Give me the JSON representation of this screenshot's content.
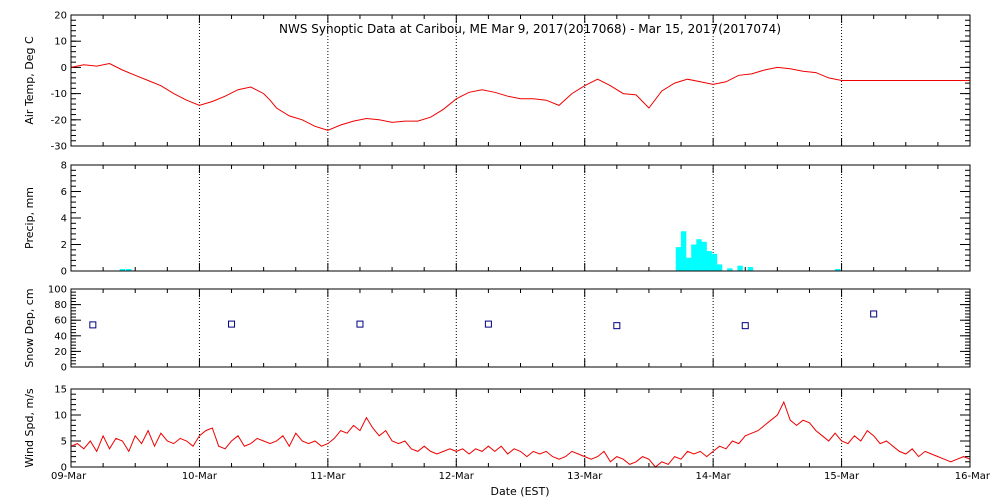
{
  "chart_data": {
    "title": "NWS Synoptic Data at Caribou, ME   Mar  9, 2017(2017068) - Mar 15, 2017(2017074)",
    "xlabel": "Date (EST)",
    "x_ticks": [
      "09-Mar",
      "10-Mar",
      "11-Mar",
      "12-Mar",
      "13-Mar",
      "14-Mar",
      "15-Mar",
      "16-Mar"
    ],
    "x_range_days": [
      0,
      7
    ],
    "grid": "vertical dotted at day boundaries",
    "panels": [
      {
        "id": "air_temp",
        "type": "line",
        "ylabel": "Air Temp, Deg C",
        "ylim": [
          -30,
          20
        ],
        "y_ticks": [
          "20",
          "10",
          "0",
          "-10",
          "-20",
          "-30"
        ],
        "color": "#ee0000",
        "x": [
          0,
          0.1,
          0.2,
          0.3,
          0.4,
          0.5,
          0.6,
          0.7,
          0.8,
          0.9,
          1.0,
          1.1,
          1.2,
          1.3,
          1.4,
          1.5,
          1.55,
          1.6,
          1.7,
          1.8,
          1.9,
          2.0,
          2.1,
          2.2,
          2.3,
          2.4,
          2.5,
          2.6,
          2.7,
          2.8,
          2.9,
          3.0,
          3.1,
          3.2,
          3.3,
          3.4,
          3.5,
          3.6,
          3.7,
          3.8,
          3.9,
          4.0,
          4.1,
          4.2,
          4.3,
          4.4,
          4.5,
          4.6,
          4.7,
          4.8,
          4.9,
          5.0,
          5.1,
          5.2,
          5.3,
          5.4,
          5.5,
          5.6,
          5.7,
          5.8,
          5.9,
          6.0,
          6.1,
          6.2,
          6.3,
          6.4,
          6.5,
          6.6,
          6.7,
          6.8,
          6.9,
          7.0
        ],
        "values": [
          0,
          1,
          0.5,
          1.5,
          -1,
          -3,
          -5,
          -7,
          -10,
          -12.5,
          -14.5,
          -13,
          -11,
          -8.5,
          -7.5,
          -10,
          -12.5,
          -15.5,
          -18.5,
          -20,
          -22.5,
          -24,
          -22,
          -20.5,
          -19.5,
          -20,
          -21,
          -20.5,
          -20.5,
          -19,
          -16,
          -12,
          -9.5,
          -8.5,
          -9.5,
          -11,
          -12,
          -12,
          -12.5,
          -14.5,
          -10,
          -7,
          -4.5,
          -7,
          -10,
          -10.5,
          -15.5,
          -9,
          -6,
          -4.5,
          -5.5,
          -6.5,
          -5.5,
          -3,
          -2.5,
          -1,
          0,
          -0.5,
          -1.5,
          -2,
          -4,
          -5,
          -5,
          -5,
          -5,
          -5,
          -5,
          -5,
          -5,
          -5,
          -5,
          -5
        ]
      },
      {
        "id": "precip",
        "type": "bar",
        "ylabel": "Precip, mm",
        "ylim": [
          0,
          8
        ],
        "y_ticks": [
          "8",
          "6",
          "4",
          "2",
          "0"
        ],
        "color": "#00ffff",
        "bar_width_days": 0.042,
        "x": [
          0.4,
          0.45,
          4.73,
          4.77,
          4.81,
          4.85,
          4.89,
          4.93,
          4.97,
          5.01,
          5.05,
          5.13,
          5.21,
          5.29,
          5.97
        ],
        "values": [
          0.15,
          0.15,
          1.8,
          3.0,
          1.0,
          2.0,
          2.4,
          2.2,
          1.5,
          1.3,
          0.5,
          0.2,
          0.4,
          0.3,
          0.15
        ]
      },
      {
        "id": "snow_depth",
        "type": "scatter",
        "ylabel": "Snow Dep, cm",
        "ylim": [
          0,
          100
        ],
        "y_ticks": [
          "100",
          "80",
          "60",
          "40",
          "20",
          "0"
        ],
        "color": "#000080",
        "x": [
          0.17,
          1.25,
          2.25,
          3.25,
          4.25,
          5.25,
          6.25
        ],
        "values": [
          54,
          55,
          55,
          55,
          53,
          53,
          68
        ]
      },
      {
        "id": "wind_speed",
        "type": "line",
        "ylabel": "Wind Spd, m/s",
        "ylim": [
          0,
          15
        ],
        "y_ticks": [
          "15",
          "10",
          "5",
          "0"
        ],
        "color": "#ee0000",
        "x": [
          0,
          0.05,
          0.1,
          0.15,
          0.2,
          0.25,
          0.3,
          0.35,
          0.4,
          0.45,
          0.5,
          0.55,
          0.6,
          0.65,
          0.7,
          0.75,
          0.8,
          0.85,
          0.9,
          0.95,
          1.0,
          1.05,
          1.1,
          1.15,
          1.2,
          1.25,
          1.3,
          1.35,
          1.4,
          1.45,
          1.5,
          1.55,
          1.6,
          1.65,
          1.7,
          1.75,
          1.8,
          1.85,
          1.9,
          1.95,
          2.0,
          2.05,
          2.1,
          2.15,
          2.2,
          2.25,
          2.3,
          2.35,
          2.4,
          2.45,
          2.5,
          2.55,
          2.6,
          2.65,
          2.7,
          2.75,
          2.8,
          2.85,
          2.9,
          2.95,
          3.0,
          3.05,
          3.1,
          3.15,
          3.2,
          3.25,
          3.3,
          3.35,
          3.4,
          3.45,
          3.5,
          3.55,
          3.6,
          3.65,
          3.7,
          3.75,
          3.8,
          3.85,
          3.9,
          3.95,
          4.0,
          4.05,
          4.1,
          4.15,
          4.2,
          4.25,
          4.3,
          4.35,
          4.4,
          4.45,
          4.5,
          4.55,
          4.6,
          4.65,
          4.7,
          4.75,
          4.8,
          4.85,
          4.9,
          4.95,
          5.0,
          5.05,
          5.1,
          5.15,
          5.2,
          5.25,
          5.3,
          5.35,
          5.4,
          5.45,
          5.5,
          5.55,
          5.6,
          5.65,
          5.7,
          5.75,
          5.8,
          5.85,
          5.9,
          5.95,
          6.0,
          6.05,
          6.1,
          6.15,
          6.2,
          6.25,
          6.3,
          6.35,
          6.4,
          6.45,
          6.5,
          6.55,
          6.6,
          6.65,
          6.7,
          6.75,
          6.8,
          6.85,
          6.9,
          6.95,
          7.0
        ],
        "values": [
          4,
          4.5,
          3.5,
          5,
          3,
          6,
          3.5,
          5.5,
          5,
          3,
          6,
          4.5,
          7,
          4,
          6.5,
          5,
          4.5,
          5.5,
          5,
          4,
          6,
          7,
          7.5,
          4,
          3.5,
          5,
          6,
          4,
          4.5,
          5.5,
          5,
          4.5,
          5,
          6,
          4,
          6.5,
          5,
          4.5,
          5,
          4,
          4.5,
          5.5,
          7,
          6.5,
          8,
          7,
          9.5,
          7.5,
          6,
          7,
          5,
          4.5,
          5,
          3.5,
          3,
          4,
          3,
          2.5,
          3,
          3.5,
          3,
          3.5,
          2.5,
          3.5,
          3,
          4,
          3,
          4,
          2.5,
          3.5,
          3,
          2,
          3,
          2.5,
          3,
          2,
          1.5,
          2,
          3,
          2.5,
          2,
          1.5,
          2,
          3,
          1,
          2,
          1.5,
          0.5,
          1,
          2,
          1.5,
          0,
          1,
          0.5,
          2,
          1.5,
          3,
          2.5,
          3,
          2,
          3,
          4,
          3.5,
          5,
          4.5,
          6,
          6.5,
          7,
          8,
          9,
          10,
          12.5,
          9,
          8,
          9,
          8.5,
          7,
          6,
          5,
          6.5,
          5,
          4.5,
          6,
          5,
          7,
          6,
          4.5,
          5,
          4,
          3,
          2.5,
          3.5,
          2,
          3,
          2.5,
          2,
          1.5,
          1,
          1.5,
          2,
          1.5
        ]
      }
    ]
  }
}
